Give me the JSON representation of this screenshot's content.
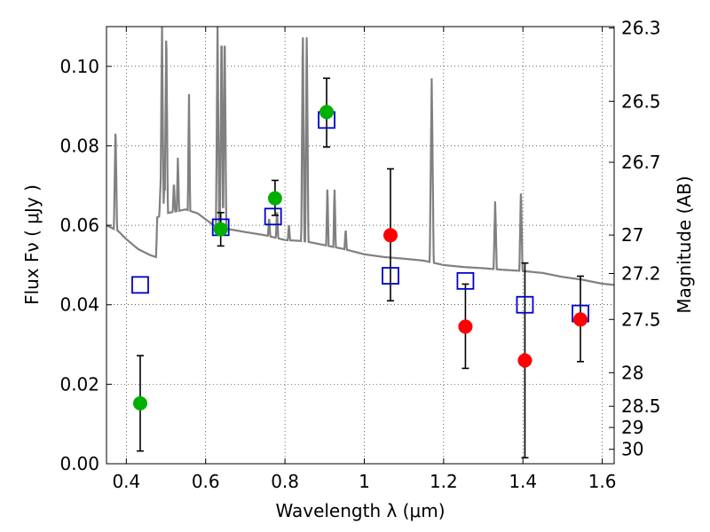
{
  "chart_data": {
    "type": "scatter",
    "xlabel": "Wavelength  λ (μm)",
    "ylabel_left": "Flux  Fν  ( μJy )",
    "ylabel_right": "Magnitude (AB)",
    "xlim": [
      0.35,
      1.63
    ],
    "ylim": [
      0.0,
      0.11
    ],
    "grid": true,
    "x_ticks": [
      {
        "value": 0.4,
        "label": "0.4"
      },
      {
        "value": 0.6,
        "label": "0.6"
      },
      {
        "value": 0.8,
        "label": "0.8"
      },
      {
        "value": 1.0,
        "label": "1"
      },
      {
        "value": 1.2,
        "label": "1.2"
      },
      {
        "value": 1.4,
        "label": "1.4"
      },
      {
        "value": 1.6,
        "label": "1.6"
      }
    ],
    "y_ticks": [
      {
        "value": 0.0,
        "label": "0.00"
      },
      {
        "value": 0.02,
        "label": "0.02"
      },
      {
        "value": 0.04,
        "label": "0.04"
      },
      {
        "value": 0.06,
        "label": "0.06"
      },
      {
        "value": 0.08,
        "label": "0.08"
      },
      {
        "value": 0.1,
        "label": "0.10"
      }
    ],
    "right_ticks": [
      {
        "mag": 26.3,
        "label": "26.3"
      },
      {
        "mag": 26.5,
        "label": "26.5"
      },
      {
        "mag": 26.7,
        "label": "26.7"
      },
      {
        "mag": 27.0,
        "label": "27"
      },
      {
        "mag": 27.2,
        "label": "27.2"
      },
      {
        "mag": 27.5,
        "label": "27.5"
      },
      {
        "mag": 28.0,
        "label": "28"
      },
      {
        "mag": 28.5,
        "label": "28.5"
      },
      {
        "mag": 29.0,
        "label": "29"
      },
      {
        "mag": 30.0,
        "label": "30"
      }
    ],
    "colors": {
      "detection": "#00b000",
      "nondetection": "#ff0000",
      "model": "#0000cc",
      "spectrum": "#808080",
      "errorbar": "#000000"
    },
    "green_points": [
      {
        "x": 0.435,
        "y": 0.0152,
        "err": [
          0.0032,
          0.0272
        ]
      },
      {
        "x": 0.638,
        "y": 0.059,
        "err": [
          0.0548,
          0.0632
        ]
      },
      {
        "x": 0.775,
        "y": 0.0668,
        "err": [
          0.0625,
          0.0713
        ]
      },
      {
        "x": 0.905,
        "y": 0.0885,
        "err": [
          0.0797,
          0.097
        ]
      }
    ],
    "red_points": [
      {
        "x": 1.066,
        "y": 0.0575,
        "err": [
          0.041,
          0.0742
        ]
      },
      {
        "x": 1.255,
        "y": 0.0345,
        "err": [
          0.024,
          0.0452
        ]
      },
      {
        "x": 1.405,
        "y": 0.026,
        "err": [
          0.0015,
          0.0505
        ]
      },
      {
        "x": 1.545,
        "y": 0.0363,
        "err": [
          0.0257,
          0.0472
        ]
      }
    ],
    "model_squares": [
      {
        "x": 0.435,
        "y": 0.045
      },
      {
        "x": 0.638,
        "y": 0.0595
      },
      {
        "x": 0.77,
        "y": 0.0622
      },
      {
        "x": 0.905,
        "y": 0.0865
      },
      {
        "x": 1.066,
        "y": 0.0473
      },
      {
        "x": 1.255,
        "y": 0.046
      },
      {
        "x": 1.405,
        "y": 0.04
      },
      {
        "x": 1.545,
        "y": 0.0378
      }
    ],
    "spectrum_continuum": [
      [
        0.35,
        0.06
      ],
      [
        0.38,
        0.0585
      ],
      [
        0.4,
        0.0565
      ],
      [
        0.43,
        0.054
      ],
      [
        0.46,
        0.0525
      ],
      [
        0.475,
        0.052
      ],
      [
        0.478,
        0.062
      ],
      [
        0.5,
        0.063
      ],
      [
        0.55,
        0.064
      ],
      [
        0.58,
        0.063
      ],
      [
        0.62,
        0.06
      ],
      [
        0.66,
        0.059
      ],
      [
        0.7,
        0.0583
      ],
      [
        0.75,
        0.0575
      ],
      [
        0.8,
        0.0563
      ],
      [
        0.85,
        0.056
      ],
      [
        0.9,
        0.055
      ],
      [
        0.95,
        0.054
      ],
      [
        1.0,
        0.0527
      ],
      [
        1.05,
        0.052
      ],
      [
        1.1,
        0.0516
      ],
      [
        1.15,
        0.0511
      ],
      [
        1.2,
        0.05
      ],
      [
        1.25,
        0.0495
      ],
      [
        1.3,
        0.0492
      ],
      [
        1.35,
        0.0488
      ],
      [
        1.4,
        0.0485
      ],
      [
        1.45,
        0.048
      ],
      [
        1.5,
        0.047
      ],
      [
        1.55,
        0.0463
      ],
      [
        1.6,
        0.0453
      ],
      [
        1.63,
        0.045
      ]
    ],
    "spectrum_lines": [
      {
        "x": 0.3727,
        "peak": 0.085,
        "w": 0.004
      },
      {
        "x": 0.4861,
        "peak": 0.07,
        "w": 0.003
      },
      {
        "x": 0.4959,
        "peak": 0.07,
        "w": 0.003
      },
      {
        "x": 0.49,
        "peak": 0.11,
        "w": 0.004
      },
      {
        "x": 0.5007,
        "peak": 0.11,
        "w": 0.004
      },
      {
        "x": 0.52,
        "peak": 0.071,
        "w": 0.003
      },
      {
        "x": 0.53,
        "peak": 0.077,
        "w": 0.003
      },
      {
        "x": 0.558,
        "peak": 0.093,
        "w": 0.003
      },
      {
        "x": 0.63,
        "peak": 0.11,
        "w": 0.004
      },
      {
        "x": 0.64,
        "peak": 0.11,
        "w": 0.004
      },
      {
        "x": 0.648,
        "peak": 0.11,
        "w": 0.004
      },
      {
        "x": 0.76,
        "peak": 0.062,
        "w": 0.003
      },
      {
        "x": 0.78,
        "peak": 0.064,
        "w": 0.003
      },
      {
        "x": 0.81,
        "peak": 0.06,
        "w": 0.003
      },
      {
        "x": 0.845,
        "peak": 0.11,
        "w": 0.004
      },
      {
        "x": 0.855,
        "peak": 0.11,
        "w": 0.004
      },
      {
        "x": 0.907,
        "peak": 0.07,
        "w": 0.003
      },
      {
        "x": 0.925,
        "peak": 0.07,
        "w": 0.003
      },
      {
        "x": 0.953,
        "peak": 0.059,
        "w": 0.003
      },
      {
        "x": 1.17,
        "peak": 0.097,
        "w": 0.005
      },
      {
        "x": 1.33,
        "peak": 0.066,
        "w": 0.004
      },
      {
        "x": 1.395,
        "peak": 0.069,
        "w": 0.004
      }
    ]
  }
}
